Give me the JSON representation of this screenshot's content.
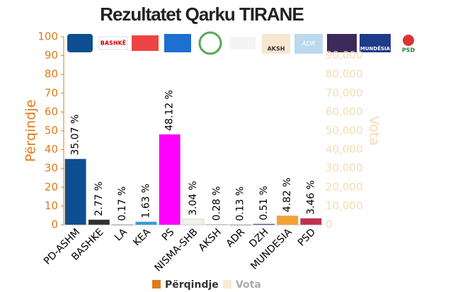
{
  "chart_data": {
    "type": "bar",
    "title": "Rezultatet Qarku TIRANE",
    "categories": [
      "PD-ASHM",
      "BASHKE",
      "LA",
      "KEA",
      "PS",
      "NISMA-SHB",
      "AKSH",
      "ADR",
      "DZH",
      "MUNDESIA",
      "PSD"
    ],
    "values": [
      35.07,
      2.77,
      0.17,
      1.63,
      48.12,
      3.04,
      0.28,
      0.13,
      0.51,
      4.82,
      3.46
    ],
    "value_labels": [
      "35.07 %",
      "2.77 %",
      "0.17 %",
      "1.63 %",
      "48.12 %",
      "3.04 %",
      "0.28 %",
      "0.13 %",
      "0.51 %",
      "4.82 %",
      "3.46 %"
    ],
    "colors": [
      "#0d4f91",
      "#2f3133",
      "#9a9a9a",
      "#2b9fd9",
      "#ff00ff",
      "#f1f0e6",
      "#c8c8c8",
      "#a0a0a0",
      "#2c3e80",
      "#f4a234",
      "#c2304c"
    ],
    "ylabel": "Përqindje",
    "y2label": "Vota",
    "ylim": [
      0,
      100
    ],
    "yticks": [
      0,
      10,
      20,
      30,
      40,
      50,
      60,
      70,
      80,
      90,
      100
    ],
    "y2lim": [
      0,
      100000
    ],
    "y2ticks": [
      0,
      {
        "value": 10000,
        "label": "10,000"
      },
      {
        "value": 20000,
        "label": "20,000"
      },
      {
        "value": 30000,
        "label": "30,000"
      },
      {
        "value": 40000,
        "label": "40,000"
      },
      {
        "value": 50000,
        "label": "50,000"
      },
      {
        "value": 60000,
        "label": "60,000"
      },
      {
        "value": 70000,
        "label": "70,000"
      },
      {
        "value": 80000,
        "label": "80,000"
      },
      {
        "value": 90000,
        "label": "90,000"
      }
    ],
    "legend": [
      {
        "name": "Përqindje",
        "color": "#e07b1a"
      },
      {
        "name": "Vota",
        "color": "#f8ecd4"
      }
    ]
  },
  "logos": [
    "BASHKË",
    "AKSH",
    "ADR",
    "MUNDËSIA",
    "PSD"
  ]
}
